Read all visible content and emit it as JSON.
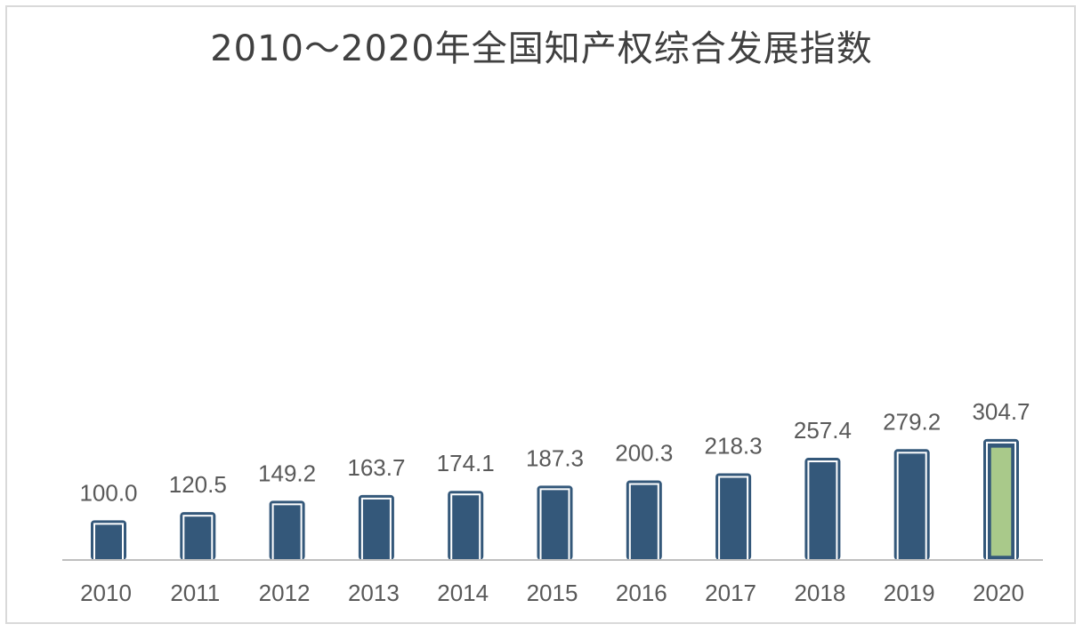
{
  "chart_data": {
    "type": "bar",
    "title": "2010～2020年全国知产权综合发展指数",
    "xlabel": "",
    "ylabel": "",
    "categories": [
      "2010",
      "2011",
      "2012",
      "2013",
      "2014",
      "2015",
      "2016",
      "2017",
      "2018",
      "2019",
      "2020"
    ],
    "values": [
      100.0,
      120.5,
      149.2,
      163.7,
      174.1,
      187.3,
      200.3,
      218.3,
      257.4,
      279.2,
      304.7
    ],
    "value_labels": [
      "100.0",
      "120.5",
      "149.2",
      "163.7",
      "174.1",
      "187.3",
      "200.3",
      "218.3",
      "257.4",
      "279.2",
      "304.7"
    ],
    "ylim": [
      0,
      310
    ],
    "grid": false,
    "legend": "none",
    "colors": {
      "bar": "#34587a",
      "bar_highlight": "#a9c98a",
      "bar_highlight_border": "#34587a",
      "axis": "#bfbfbf",
      "text": "#595959"
    },
    "highlight_category": "2020"
  }
}
